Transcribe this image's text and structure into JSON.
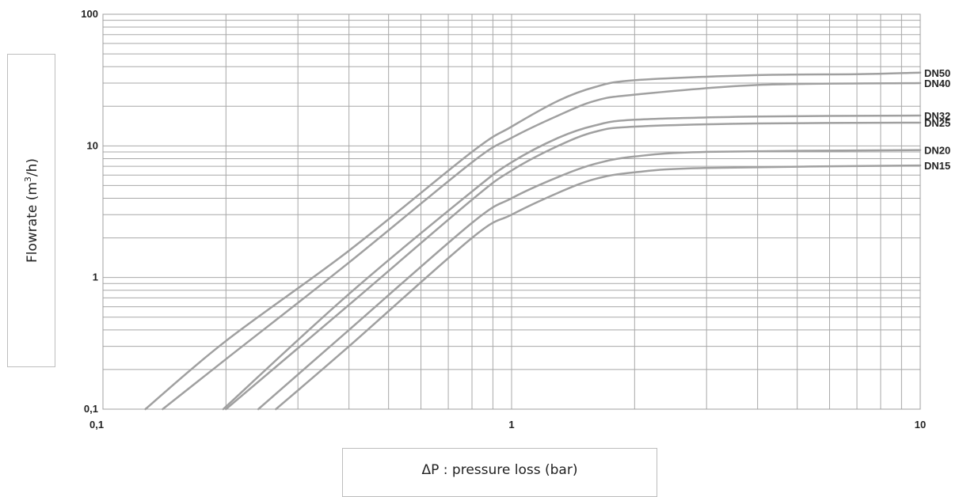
{
  "chart_data": {
    "type": "line",
    "xlabel": "ΔP : pressure loss (bar)",
    "ylabel_prefix": "Flowrate (m",
    "ylabel_sup": "3",
    "ylabel_suffix": "/h)",
    "x_scale": "log",
    "y_scale": "log",
    "xlim": [
      0.1,
      10
    ],
    "ylim": [
      0.1,
      100
    ],
    "x_ticks": [
      {
        "v": 0.1,
        "label": "0,1"
      },
      {
        "v": 1,
        "label": "1"
      },
      {
        "v": 10,
        "label": "10"
      }
    ],
    "y_ticks": [
      {
        "v": 0.1,
        "label": "0,1"
      },
      {
        "v": 1,
        "label": "1"
      },
      {
        "v": 10,
        "label": "10"
      },
      {
        "v": 100,
        "label": "100"
      }
    ],
    "grid": true,
    "line_color": "#a0a0a0",
    "series": [
      {
        "name": "DN50",
        "points": [
          [
            0.127,
            0.1
          ],
          [
            0.2,
            0.33
          ],
          [
            0.4,
            1.6
          ],
          [
            0.8,
            9.0
          ],
          [
            1.0,
            14.0
          ],
          [
            1.3,
            22.0
          ],
          [
            1.6,
            28.0
          ],
          [
            2.0,
            31.5
          ],
          [
            4.0,
            34.5
          ],
          [
            7.0,
            35.0
          ],
          [
            10.0,
            36.0
          ]
        ]
      },
      {
        "name": "DN40",
        "points": [
          [
            0.14,
            0.1
          ],
          [
            0.2,
            0.24
          ],
          [
            0.4,
            1.3
          ],
          [
            0.8,
            7.5
          ],
          [
            1.0,
            11.5
          ],
          [
            1.3,
            17.0
          ],
          [
            1.6,
            22.0
          ],
          [
            2.0,
            24.5
          ],
          [
            4.0,
            29.0
          ],
          [
            10.0,
            30.0
          ]
        ]
      },
      {
        "name": "DN32",
        "points": [
          [
            0.197,
            0.1
          ],
          [
            0.4,
            0.75
          ],
          [
            0.8,
            4.5
          ],
          [
            1.0,
            7.5
          ],
          [
            1.3,
            11.5
          ],
          [
            1.6,
            14.3
          ],
          [
            2.0,
            15.8
          ],
          [
            4.0,
            16.7
          ],
          [
            10.0,
            17.0
          ]
        ]
      },
      {
        "name": "DN25",
        "points": [
          [
            0.2,
            0.1
          ],
          [
            0.4,
            0.62
          ],
          [
            0.8,
            3.9
          ],
          [
            1.0,
            6.5
          ],
          [
            1.3,
            10.0
          ],
          [
            1.6,
            12.8
          ],
          [
            2.0,
            14.0
          ],
          [
            4.0,
            14.8
          ],
          [
            10.0,
            15.0
          ]
        ]
      },
      {
        "name": "DN20",
        "points": [
          [
            0.24,
            0.1
          ],
          [
            0.4,
            0.4
          ],
          [
            0.8,
            2.6
          ],
          [
            1.0,
            4.0
          ],
          [
            1.3,
            5.8
          ],
          [
            1.6,
            7.3
          ],
          [
            2.0,
            8.3
          ],
          [
            3.0,
            9.0
          ],
          [
            10.0,
            9.3
          ]
        ]
      },
      {
        "name": "DN15",
        "points": [
          [
            0.265,
            0.1
          ],
          [
            0.4,
            0.3
          ],
          [
            0.8,
            2.0
          ],
          [
            1.0,
            3.0
          ],
          [
            1.3,
            4.4
          ],
          [
            1.6,
            5.6
          ],
          [
            2.0,
            6.3
          ],
          [
            3.0,
            6.8
          ],
          [
            10.0,
            7.1
          ]
        ]
      }
    ]
  }
}
